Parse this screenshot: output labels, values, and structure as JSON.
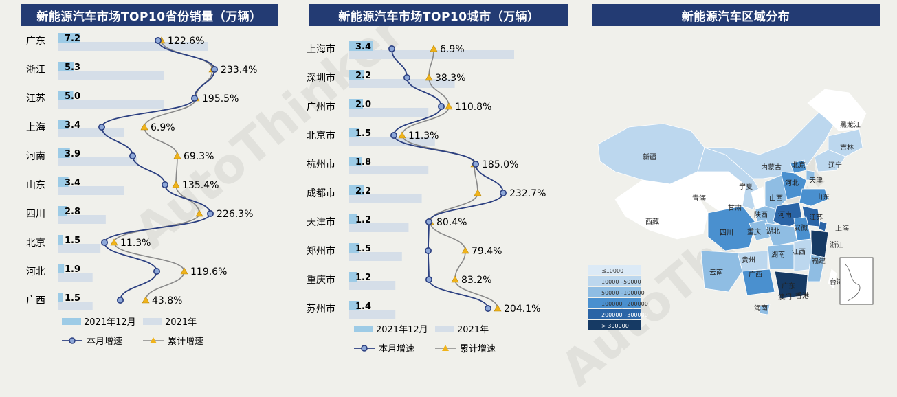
{
  "watermark": "AutoThinker",
  "legend_labels": {
    "month_bar": "2021年12月",
    "year_bar": "2021年",
    "month_growth": "本月增速",
    "cumulative_growth": "累计增速"
  },
  "colors": {
    "title_bg": "#233b73",
    "bar_month": "#9dcbe6",
    "bar_year": "#d5dee8",
    "line_month": "#2b3f80",
    "line_cum": "#888888",
    "marker_cum": "#f0b31a"
  },
  "provinces": {
    "title": "新能源汽车市场TOP10省份销量（万辆）",
    "chart_data": {
      "type": "bar",
      "categories": [
        "广东",
        "浙江",
        "江苏",
        "上海",
        "河南",
        "山东",
        "四川",
        "北京",
        "河北",
        "广西"
      ],
      "series": [
        {
          "name": "2021年12月",
          "values": [
            7.2,
            5.3,
            5.0,
            3.4,
            3.9,
            3.4,
            2.8,
            1.5,
            1.9,
            1.5
          ]
        },
        {
          "name": "2021年",
          "values": [
            57,
            40,
            40,
            25,
            30,
            25,
            18,
            16,
            13,
            13
          ]
        },
        {
          "name": "本月增速",
          "values": [
            122.6,
            233.4,
            195.5,
            6.9,
            69.3,
            135.4,
            226.3,
            11.3,
            119.6,
            43.8
          ]
        },
        {
          "name": "累计增速",
          "values": [
            122.6,
            233.4,
            195.5,
            6.9,
            69.3,
            135.4,
            226.3,
            11.3,
            119.6,
            43.8
          ]
        }
      ],
      "value_labels": [
        "7.2",
        "5.3",
        "5.0",
        "3.4",
        "3.9",
        "3.4",
        "2.8",
        "1.5",
        "1.9",
        "1.5"
      ],
      "pct_labels": [
        "122.6%",
        "233.4%",
        "195.5%",
        "6.9%",
        "69.3%",
        "135.4%",
        "226.3%",
        "11.3%",
        "119.6%",
        "43.8%"
      ],
      "month_growth_pos": [
        230,
        312,
        283,
        148,
        193,
        240,
        306,
        152,
        228,
        175
      ],
      "cum_growth_pos": [
        235,
        309,
        285,
        210,
        258,
        256,
        290,
        166,
        268,
        212
      ],
      "bar_scale_month": 4.2,
      "year_bar_max": 218,
      "year_bar_max_value": 57
    }
  },
  "cities": {
    "title": "新能源汽车市场TOP10城市（万辆）",
    "chart_data": {
      "type": "bar",
      "categories": [
        "上海市",
        "深圳市",
        "广州市",
        "北京市",
        "杭州市",
        "成都市",
        "天津市",
        "郑州市",
        "重庆市",
        "苏州市"
      ],
      "series": [
        {
          "name": "2021年12月",
          "values": [
            3.4,
            2.2,
            2.0,
            1.5,
            1.8,
            2.2,
            1.2,
            1.5,
            1.2,
            1.4
          ]
        },
        {
          "name": "2021年",
          "values": [
            25,
            16,
            12,
            13,
            12,
            11,
            9,
            8,
            7,
            7
          ]
        },
        {
          "name": "本月增速",
          "values": [
            6.9,
            38.3,
            110.8,
            11.3,
            185.0,
            232.7,
            80.4,
            79.4,
            83.2,
            204.1
          ]
        },
        {
          "name": "累计增速",
          "values": [
            6.9,
            38.3,
            110.8,
            11.3,
            185.0,
            232.7,
            80.4,
            79.4,
            83.2,
            204.1
          ]
        }
      ],
      "value_labels": [
        "3.4",
        "2.2",
        "2.0",
        "1.5",
        "1.8",
        "2.2",
        "1.2",
        "1.5",
        "1.2",
        "1.4"
      ],
      "pct_labels": [
        "6.9%",
        "38.3%",
        "110.8%",
        "11.3%",
        "185.0%",
        "232.7%",
        "80.4%",
        "79.4%",
        "83.2%",
        "204.1%"
      ],
      "month_growth_pos": [
        130,
        152,
        202,
        133,
        252,
        292,
        184,
        183,
        184,
        270
      ],
      "cum_growth_pos": [
        191,
        184,
        213,
        145,
        250,
        255,
        186,
        237,
        222,
        284
      ]
    }
  },
  "region": {
    "title": "新能源汽车区域分布",
    "legend": [
      "≤10000",
      "10000~50000",
      "50000~100000",
      "100000~200000",
      "200000~300000",
      "> 300000"
    ],
    "legend_colors": [
      "#dceaf6",
      "#bcd7ee",
      "#8fbde3",
      "#4a90cf",
      "#2a64a6",
      "#163a64"
    ],
    "provinces": [
      {
        "name": "新疆",
        "level": 1
      },
      {
        "name": "西藏",
        "level": 0
      },
      {
        "name": "青海",
        "level": 0
      },
      {
        "name": "内蒙古",
        "level": 1
      },
      {
        "name": "黑龙江",
        "level": 0
      },
      {
        "name": "吉林",
        "level": 1
      },
      {
        "name": "辽宁",
        "level": 1
      },
      {
        "name": "北京",
        "level": 3
      },
      {
        "name": "天津",
        "level": 2
      },
      {
        "name": "河北",
        "level": 3
      },
      {
        "name": "山西",
        "level": 2
      },
      {
        "name": "山东",
        "level": 3
      },
      {
        "name": "宁夏",
        "level": 0
      },
      {
        "name": "甘肃",
        "level": 1
      },
      {
        "name": "陕西",
        "level": 2
      },
      {
        "name": "河南",
        "level": 4
      },
      {
        "name": "江苏",
        "level": 4
      },
      {
        "name": "上海",
        "level": 4
      },
      {
        "name": "安徽",
        "level": 3
      },
      {
        "name": "浙江",
        "level": 5
      },
      {
        "name": "四川",
        "level": 3
      },
      {
        "name": "重庆",
        "level": 2
      },
      {
        "name": "湖北",
        "level": 2
      },
      {
        "name": "湖南",
        "level": 2
      },
      {
        "name": "江西",
        "level": 1
      },
      {
        "name": "福建",
        "level": 2
      },
      {
        "name": "贵州",
        "level": 1
      },
      {
        "name": "云南",
        "level": 2
      },
      {
        "name": "广西",
        "level": 3
      },
      {
        "name": "广东",
        "level": 5
      },
      {
        "name": "台湾",
        "level": 0
      },
      {
        "name": "海南",
        "level": 2
      },
      {
        "name": "香港",
        "level": 0
      },
      {
        "name": "澳门",
        "level": 0
      }
    ]
  }
}
